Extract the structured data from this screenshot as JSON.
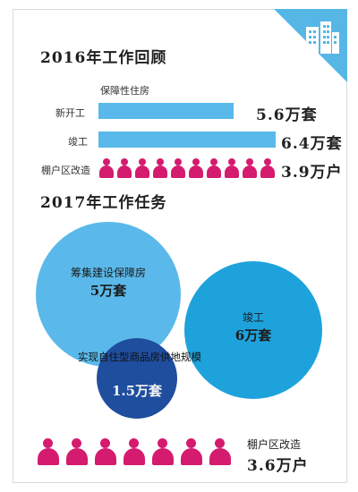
{
  "section_2016": {
    "title": "2016年工作回顾",
    "subtitle": "保障性住房",
    "rows": [
      {
        "label": "新开工",
        "value": "5.6万套",
        "level": 5.6
      },
      {
        "label": "竣工",
        "value": "6.4万套",
        "level": 6.4
      },
      {
        "label": "棚户区改造",
        "value": "3.9万户",
        "people_count": 10
      }
    ]
  },
  "section_2017": {
    "title": "2017年工作任务",
    "circles": [
      {
        "label": "筹集建设保障房",
        "value": "5万套",
        "color": "#5ab9ea"
      },
      {
        "label": "竣工",
        "value": "6万套",
        "color": "#1ea2dc"
      },
      {
        "label": "实现自住型商品房供地规模",
        "value": "1.5万套",
        "color": "#1f4e9e"
      }
    ],
    "shanty": {
      "label": "棚户区改造",
      "value": "3.6万户",
      "people_count": 7
    }
  },
  "colors": {
    "accent_blue": "#58b9ea",
    "people_pink": "#d41b6f",
    "title_dark": "#1f1f1f"
  },
  "icons": {
    "corner": "building-icon",
    "people": "person-icon"
  }
}
